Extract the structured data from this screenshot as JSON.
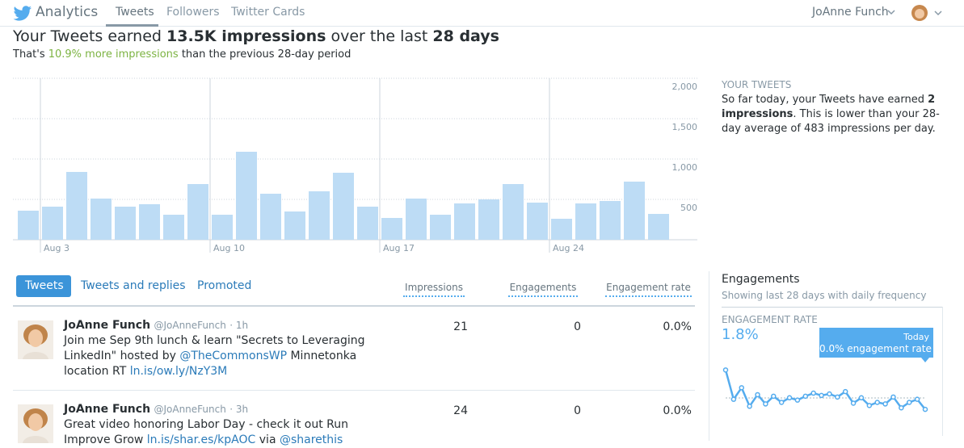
{
  "nav": {
    "brand": "Analytics",
    "tabs": [
      "Tweets",
      "Followers",
      "Twitter Cards"
    ],
    "user": "JoAnne Funch"
  },
  "summary": {
    "headline": [
      "Your Tweets earned ",
      "13.5K impressions",
      " over the last ",
      "28 days"
    ],
    "sub": [
      "That's ",
      "10.9% more impressions",
      " than the previous 28-day period"
    ]
  },
  "chart_data": [
    {
      "type": "bar",
      "categories": [
        null,
        "Aug 3",
        null,
        null,
        null,
        null,
        null,
        null,
        "Aug 10",
        null,
        null,
        null,
        null,
        null,
        null,
        "Aug 17",
        null,
        null,
        null,
        null,
        null,
        null,
        "Aug 24",
        null,
        null,
        null,
        null
      ],
      "values": [
        360,
        410,
        840,
        510,
        410,
        440,
        310,
        690,
        310,
        1090,
        570,
        350,
        600,
        830,
        410,
        270,
        510,
        310,
        450,
        500,
        690,
        460,
        260,
        450,
        480,
        720,
        320
      ],
      "color": "#bddcf5",
      "ylim": [
        0,
        2000
      ],
      "yticks": [
        500,
        {
          "value": 1000,
          "label": "1,000"
        },
        {
          "value": 1500,
          "label": "1,500"
        },
        {
          "value": 2000,
          "label": "2,000"
        }
      ],
      "grid": true
    },
    {
      "type": "line",
      "categories": [
        null,
        null,
        null,
        null,
        null,
        null,
        null,
        null,
        null,
        null,
        null,
        null,
        null,
        null,
        null,
        null,
        null,
        null,
        null,
        null,
        null,
        null,
        null,
        null,
        null,
        null
      ],
      "series": [
        {
          "color": "#55acee",
          "values": [
            5.4,
            1.6,
            3.1,
            0.7,
            2.2,
            1.0,
            2.0,
            1.2,
            1.8,
            1.5,
            2.0,
            2.4,
            2.1,
            2.3,
            1.9,
            2.6,
            1.1,
            1.8,
            0.8,
            1.2,
            1.0,
            1.9,
            0.5,
            1.2,
            1.6,
            0.3
          ]
        }
      ],
      "ylim": [
        0,
        7
      ]
    }
  ],
  "your_tweets": {
    "heading": "YOUR TWEETS",
    "text": [
      "So far today, your Tweets have earned ",
      "2 impressions",
      ". This is lower than your 28-day average of 483 impressions per day."
    ]
  },
  "tweet_tabs": [
    "Tweets",
    "Tweets and replies",
    "Promoted"
  ],
  "columns": [
    "Impressions",
    "Engagements",
    "Engagement rate"
  ],
  "tweets": [
    {
      "author": "JoAnne Funch",
      "handle": "@JoAnneFunch",
      "time": "· 1h",
      "text": [
        {
          "text": "Join me Sep 9th lunch & learn \"Secrets to Leveraging LinkedIn\" hosted by ",
          "link": false
        },
        {
          "text": "@TheCommonsWP",
          "link": true
        },
        {
          "text": " Minnetonka location RT ",
          "link": false
        },
        {
          "text": "ln.is/ow.ly/NzY3M",
          "link": true
        }
      ],
      "impressions": 21,
      "engagements": 0,
      "rate": "0.0%"
    },
    {
      "author": "JoAnne Funch",
      "handle": "@JoAnneFunch",
      "time": "· 3h",
      "text": [
        {
          "text": "Great video honoring Labor Day - check it out Run Improve Grow ",
          "link": false
        },
        {
          "text": "ln.is/shar.es/kpAOC",
          "link": true
        },
        {
          "text": " via ",
          "link": false
        },
        {
          "text": "@sharethis",
          "link": true
        }
      ],
      "impressions": 24,
      "engagements": 0,
      "rate": "0.0%"
    }
  ],
  "engagements": {
    "title": "Engagements",
    "subtitle": "Showing last 28 days with daily frequency",
    "rate_label": "ENGAGEMENT RATE",
    "rate": "1.8%",
    "tooltip_title": "Today",
    "tooltip_text": "0.0% engagement rate"
  }
}
